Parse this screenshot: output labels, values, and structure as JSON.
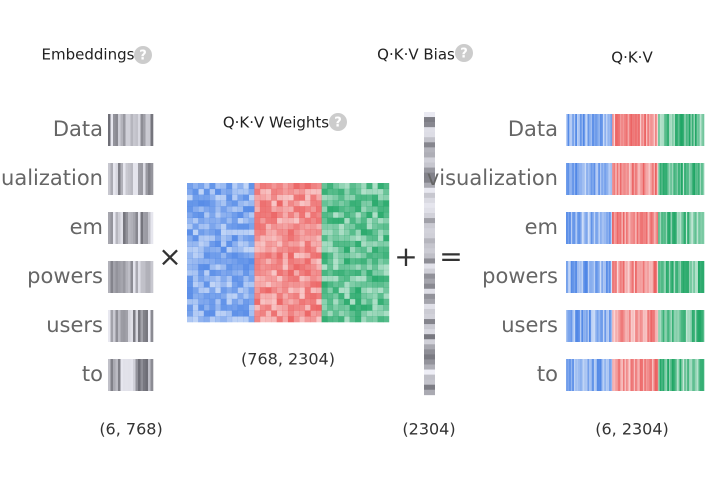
{
  "embeddings": {
    "title": "Embeddings",
    "help": "?",
    "tokens": [
      "Data",
      "visualization",
      "em",
      "powers",
      "users",
      "to"
    ],
    "shape": "(6, 768)"
  },
  "operators": {
    "multiply": "×",
    "plus": "+",
    "equals": "="
  },
  "weights": {
    "title": "Q·K·V Weights",
    "help": "?",
    "shape": "(768, 2304)"
  },
  "bias": {
    "title": "Q·K·V Bias",
    "help": "?",
    "shape": "(2304)"
  },
  "output": {
    "title": "Q·K·V",
    "tokens": [
      "Data",
      "visualization",
      "em",
      "powers",
      "users",
      "to"
    ],
    "shape": "(6, 2304)"
  }
}
